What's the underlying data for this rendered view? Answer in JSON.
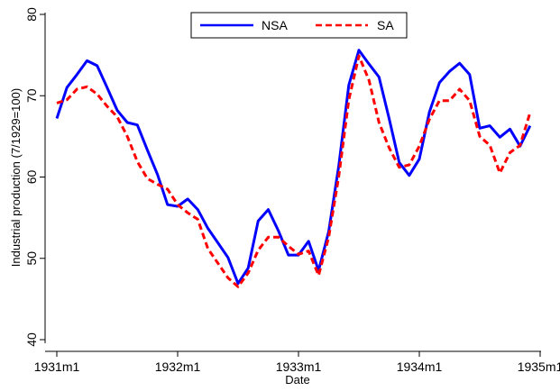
{
  "chart_data": {
    "type": "line",
    "xlabel": "Date",
    "ylabel": "Industrial production (7/1929=100)",
    "xlim": [
      0,
      48
    ],
    "ylim": [
      40,
      80
    ],
    "x_ticks": [
      {
        "value": 0,
        "label": "1931m1"
      },
      {
        "value": 12,
        "label": "1932m1"
      },
      {
        "value": 24,
        "label": "1933m1"
      },
      {
        "value": 36,
        "label": "1934m1"
      },
      {
        "value": 48,
        "label": "1935m1"
      }
    ],
    "y_ticks": [
      {
        "value": 40,
        "label": "40"
      },
      {
        "value": 50,
        "label": "50"
      },
      {
        "value": 60,
        "label": "60"
      },
      {
        "value": 70,
        "label": "70"
      },
      {
        "value": 80,
        "label": "80"
      }
    ],
    "legend": {
      "position": "top-center",
      "items": [
        "NSA",
        "SA"
      ]
    },
    "series": [
      {
        "name": "NSA",
        "color": "#0000ff",
        "dash": "solid",
        "x": [
          0,
          1,
          2,
          3,
          4,
          5,
          6,
          7,
          8,
          9,
          10,
          11,
          12,
          13,
          14,
          15,
          16,
          17,
          18,
          19,
          20,
          21,
          22,
          23,
          24,
          25,
          26,
          27,
          28,
          29,
          30,
          31,
          32,
          33,
          34,
          35,
          36,
          37,
          38,
          39,
          40,
          41,
          42,
          43,
          44,
          45,
          46,
          47
        ],
        "values": [
          67.2,
          71.0,
          72.6,
          74.3,
          73.7,
          71.0,
          68.2,
          66.7,
          66.4,
          63.3,
          60.3,
          56.6,
          56.4,
          57.3,
          56.0,
          53.7,
          51.9,
          50.1,
          46.9,
          48.8,
          54.6,
          56.0,
          53.4,
          50.4,
          50.4,
          52.1,
          48.5,
          53.3,
          61.4,
          71.3,
          75.6,
          73.9,
          72.3,
          67.2,
          61.8,
          60.2,
          62.2,
          68.0,
          71.6,
          73.0,
          74.0,
          72.6,
          66.0,
          66.3,
          64.9,
          65.9,
          63.8,
          66.3
        ]
      },
      {
        "name": "SA",
        "color": "#ff0000",
        "dash": "dashed",
        "x": [
          0,
          1,
          2,
          3,
          4,
          5,
          6,
          7,
          8,
          9,
          10,
          11,
          12,
          13,
          14,
          15,
          16,
          17,
          18,
          19,
          20,
          21,
          22,
          23,
          24,
          25,
          26,
          27,
          28,
          29,
          30,
          31,
          32,
          33,
          34,
          35,
          36,
          37,
          38,
          39,
          40,
          41,
          42,
          43,
          44,
          45,
          46,
          47
        ],
        "values": [
          69.1,
          69.5,
          70.8,
          71.1,
          70.2,
          68.7,
          67.4,
          65.0,
          61.9,
          59.8,
          59.1,
          58.5,
          56.6,
          55.6,
          54.8,
          51.2,
          49.4,
          47.6,
          46.5,
          48.2,
          51.0,
          52.6,
          52.6,
          51.5,
          50.5,
          50.9,
          47.9,
          52.6,
          60.1,
          69.5,
          74.9,
          71.9,
          66.7,
          63.6,
          61.2,
          61.5,
          63.8,
          67.1,
          69.4,
          69.4,
          70.8,
          69.4,
          65.0,
          63.9,
          60.5,
          63.0,
          63.9,
          67.9
        ]
      }
    ]
  }
}
